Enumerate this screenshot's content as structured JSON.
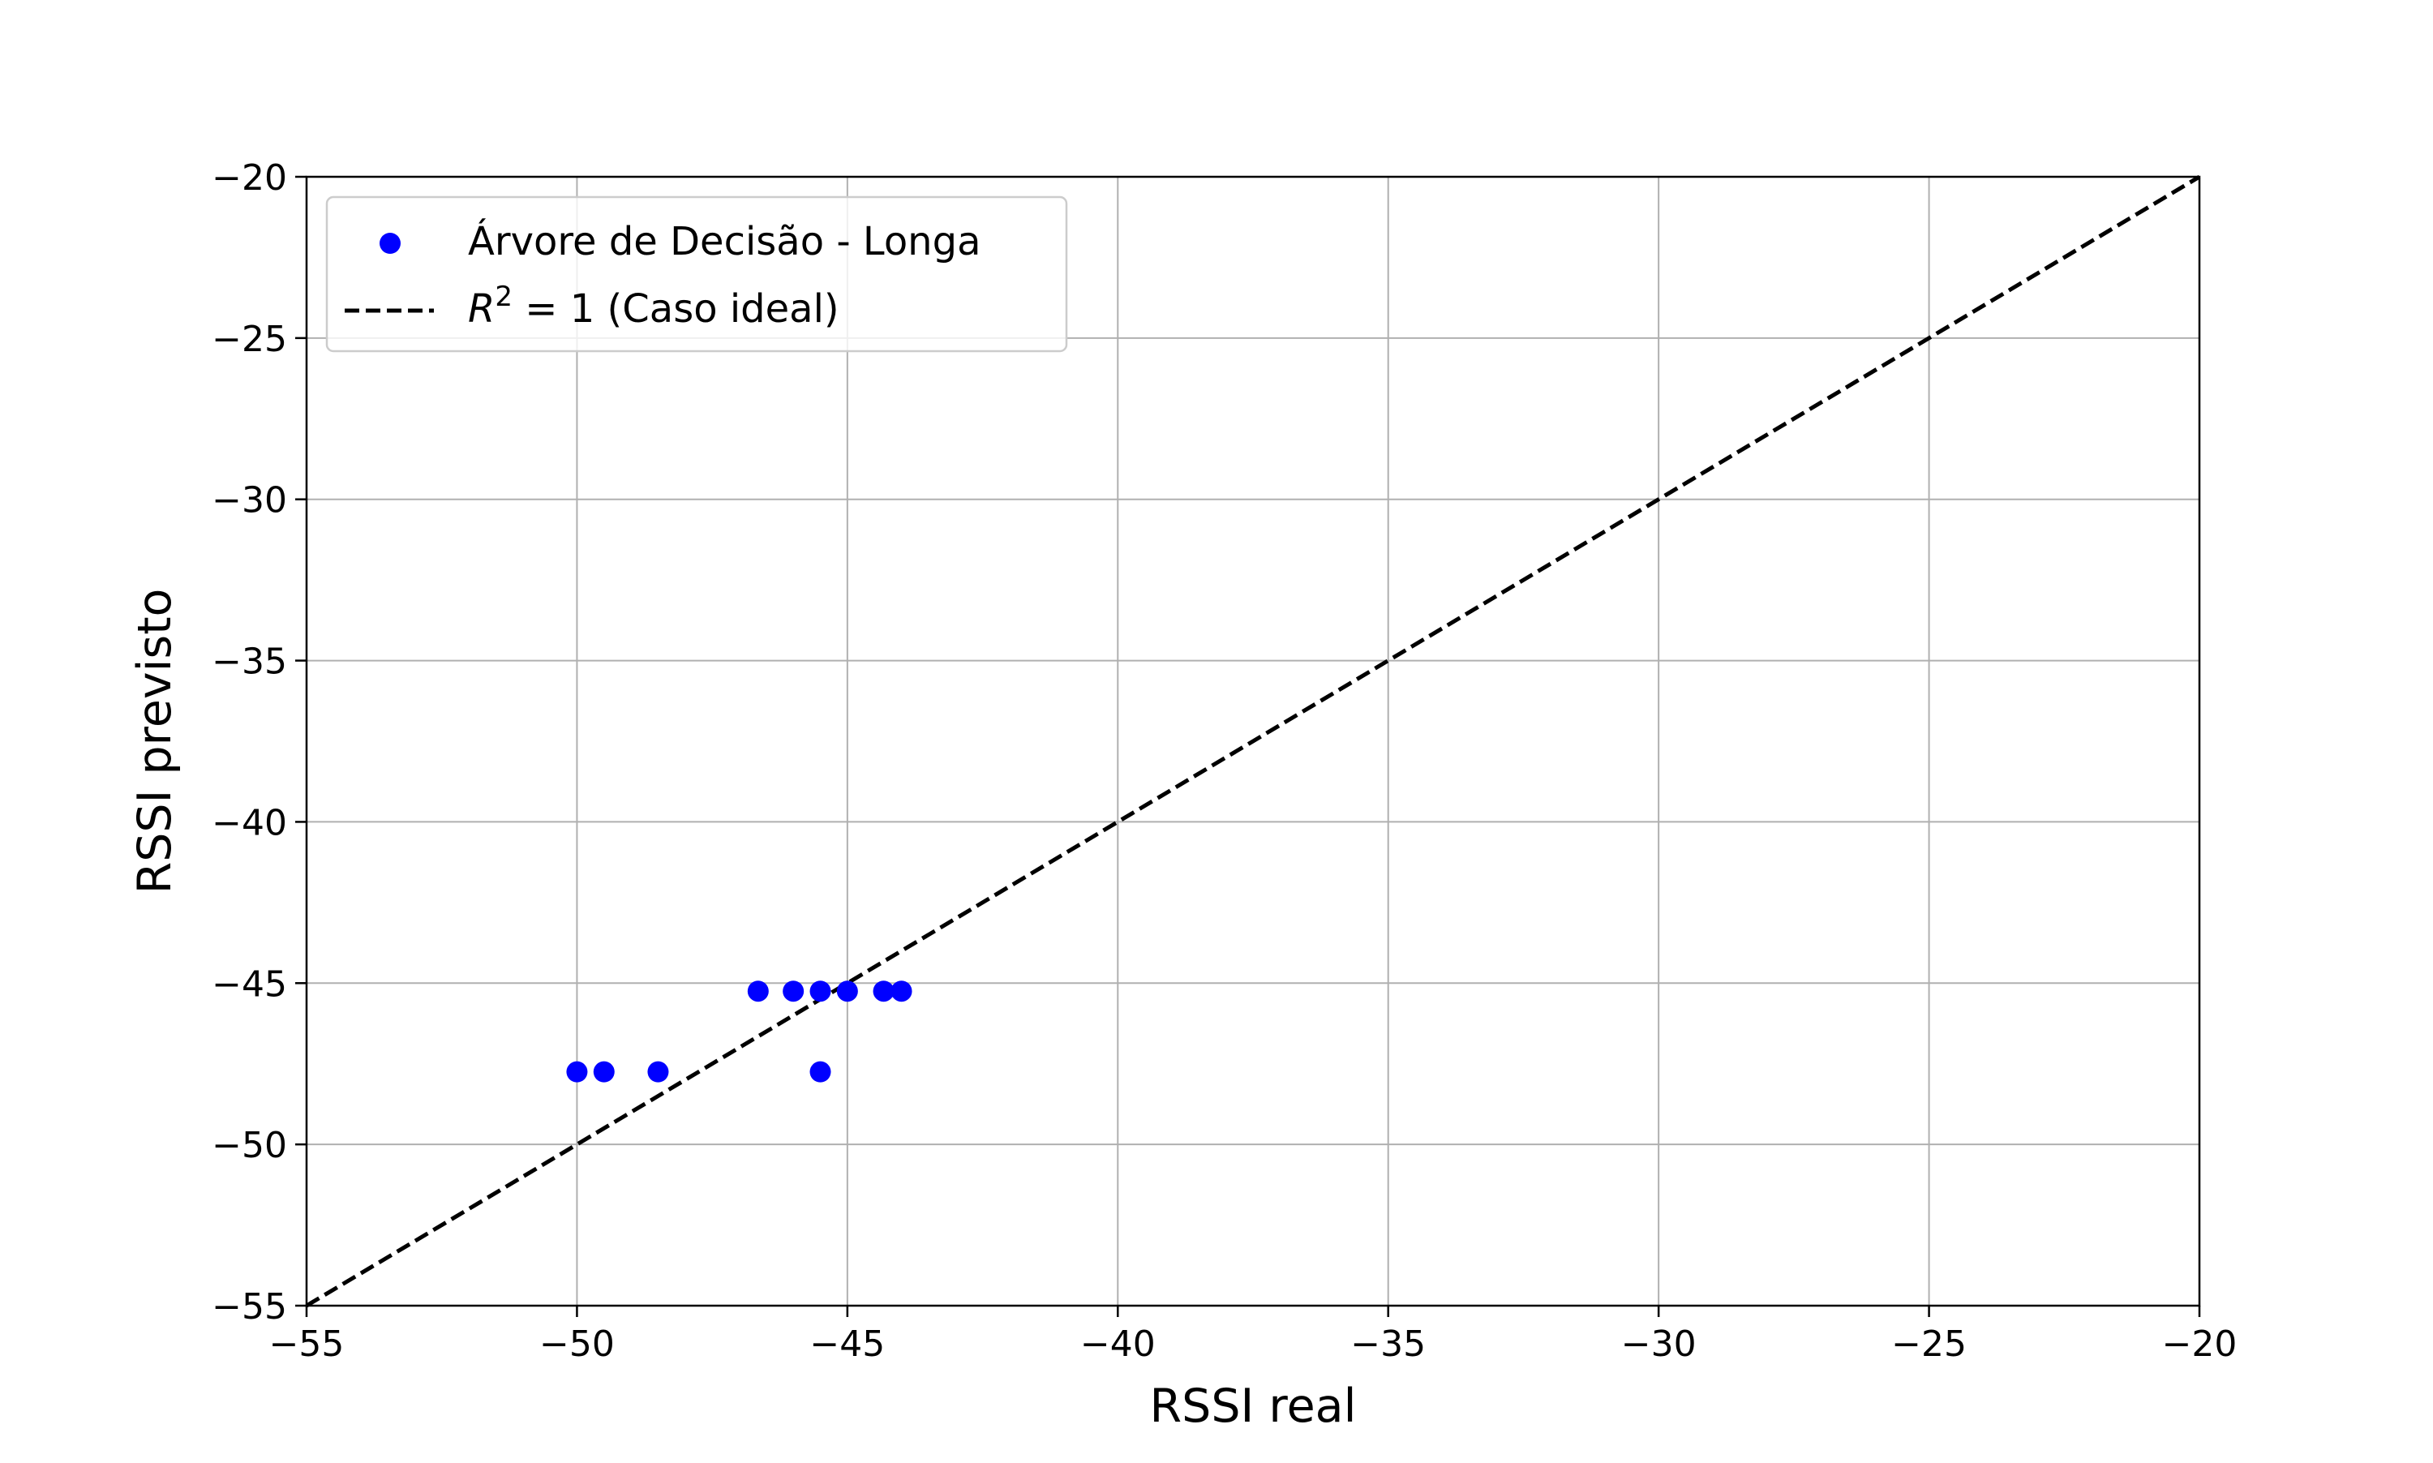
{
  "chart_data": {
    "type": "scatter",
    "title": "",
    "xlabel": "RSSI real",
    "ylabel": "RSSI previsto",
    "xlim": [
      -55,
      -20
    ],
    "ylim": [
      -55,
      -20
    ],
    "xticks": [
      -55,
      -50,
      -45,
      -40,
      -35,
      -30,
      -25,
      -20
    ],
    "yticks": [
      -55,
      -50,
      -45,
      -40,
      -35,
      -30,
      -25,
      -20
    ],
    "xtick_labels": [
      "−55",
      "−50",
      "−45",
      "−40",
      "−35",
      "−30",
      "−25",
      "−20"
    ],
    "ytick_labels": [
      "−55",
      "−50",
      "−45",
      "−40",
      "−35",
      "−30",
      "−25",
      "−20"
    ],
    "grid": true,
    "legend_position": "top-left",
    "series": [
      {
        "name": "Árvore de Decisão - Longa",
        "kind": "scatter",
        "color": "#0000ff",
        "x": [
          -50.0,
          -49.5,
          -48.5,
          -46.65,
          -46.0,
          -45.5,
          -45.0,
          -44.33,
          -44.0,
          -45.5
        ],
        "y": [
          -47.75,
          -47.75,
          -47.75,
          -45.25,
          -45.25,
          -45.25,
          -45.25,
          -45.25,
          -45.25,
          -47.75
        ]
      },
      {
        "name": "R² = 1 (Caso ideal)",
        "kind": "line",
        "style": "dashed",
        "color": "#000000",
        "x": [
          -55,
          -20
        ],
        "y": [
          -55,
          -20
        ]
      }
    ],
    "legend": {
      "scatter_label": "Árvore de Decisão - Longa",
      "line_label_math": "R",
      "line_label_sup": "2",
      "line_label_eq": " = 1 (Caso ideal)"
    }
  }
}
